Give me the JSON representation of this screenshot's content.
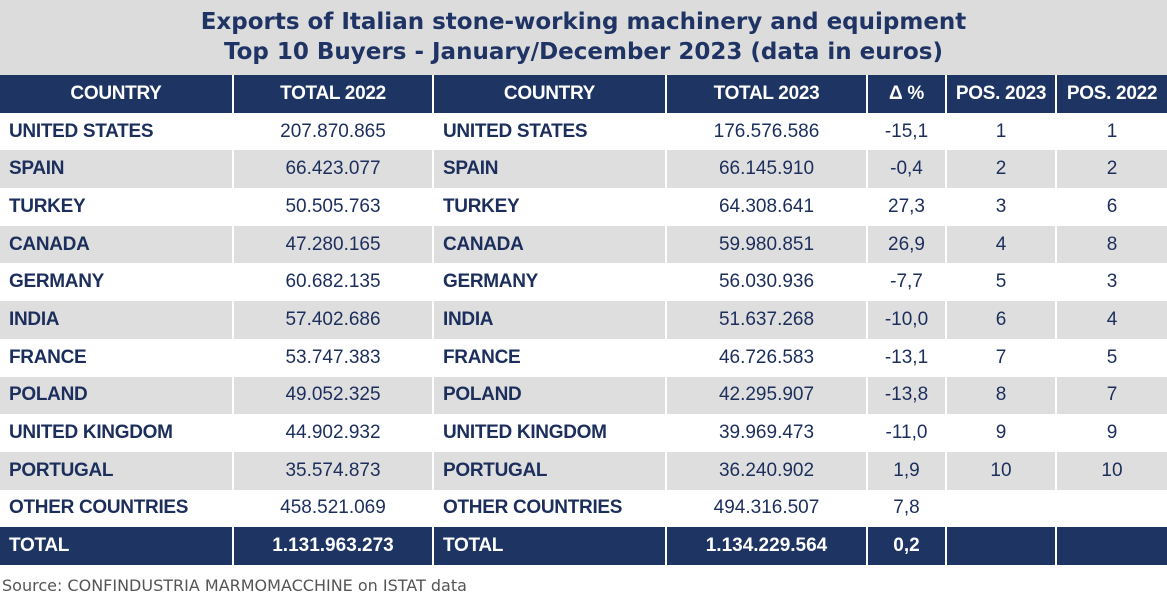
{
  "title": {
    "line1": "Exports of Italian stone-working machinery and equipment",
    "line2": "Top 10 Buyers - January/December 2023 (data in euros)"
  },
  "chart_data": {
    "type": "table",
    "columns": [
      "COUNTRY",
      "TOTAL 2022",
      "COUNTRY",
      "TOTAL 2023",
      "Δ %",
      "POS. 2023",
      "POS. 2022"
    ],
    "rows": [
      [
        "UNITED STATES",
        "207.870.865",
        "UNITED STATES",
        "176.576.586",
        "-15,1",
        "1",
        "1"
      ],
      [
        "SPAIN",
        "66.423.077",
        "SPAIN",
        "66.145.910",
        "-0,4",
        "2",
        "2"
      ],
      [
        "TURKEY",
        "50.505.763",
        "TURKEY",
        "64.308.641",
        "27,3",
        "3",
        "6"
      ],
      [
        "CANADA",
        "47.280.165",
        "CANADA",
        "59.980.851",
        "26,9",
        "4",
        "8"
      ],
      [
        "GERMANY",
        "60.682.135",
        "GERMANY",
        "56.030.936",
        "-7,7",
        "5",
        "3"
      ],
      [
        "INDIA",
        "57.402.686",
        "INDIA",
        "51.637.268",
        "-10,0",
        "6",
        "4"
      ],
      [
        "FRANCE",
        "53.747.383",
        "FRANCE",
        "46.726.583",
        "-13,1",
        "7",
        "5"
      ],
      [
        "POLAND",
        "49.052.325",
        "POLAND",
        "42.295.907",
        "-13,8",
        "8",
        "7"
      ],
      [
        "UNITED KINGDOM",
        "44.902.932",
        "UNITED KINGDOM",
        "39.969.473",
        "-11,0",
        "9",
        "9"
      ],
      [
        "PORTUGAL",
        "35.574.873",
        "PORTUGAL",
        "36.240.902",
        "1,9",
        "10",
        "10"
      ],
      [
        "OTHER COUNTRIES",
        "458.521.069",
        "OTHER COUNTRIES",
        "494.316.507",
        "7,8",
        "",
        ""
      ]
    ],
    "total_row": [
      "TOTAL",
      "1.131.963.273",
      "TOTAL",
      "1.134.229.564",
      "0,2",
      "",
      ""
    ]
  },
  "source": "Source: CONFINDUSTRIA MARMOMACCHINE on ISTAT data",
  "colors": {
    "header_bg": "#1e3564",
    "title_text": "#1f3464",
    "title_band": "#dcdcdc",
    "stripe": "#dedede"
  }
}
